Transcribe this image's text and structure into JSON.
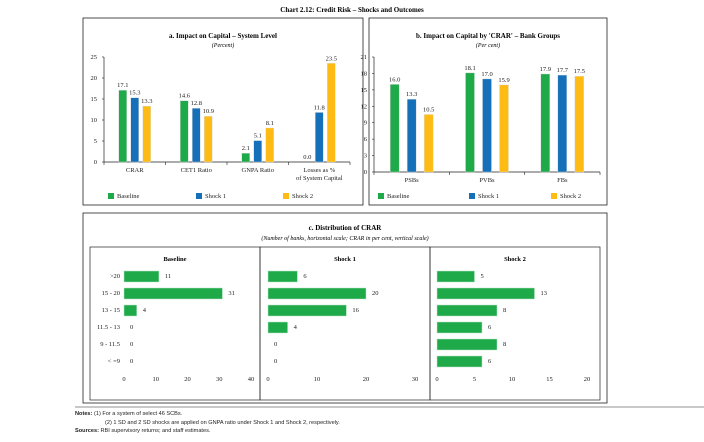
{
  "title": "Chart 2.12: Credit Risk – Shocks and Outcomes",
  "colors": {
    "Baseline": "#1faa4a",
    "Shock 1": "#1570b9",
    "Shock 2": "#fdbb14"
  },
  "chart_data": [
    {
      "type": "bar",
      "title": "a. Impact on Capital – System Level",
      "subtitle": "(Percent)",
      "categories": [
        "CRAR",
        "CET1 Ratio",
        "GNPA Ratio",
        "Losses as % of System Capital"
      ],
      "series": [
        {
          "name": "Baseline",
          "values": [
            17.1,
            14.6,
            2.1,
            0.0
          ]
        },
        {
          "name": "Shock 1",
          "values": [
            15.3,
            12.8,
            5.1,
            11.8
          ]
        },
        {
          "name": "Shock 2",
          "values": [
            13.3,
            10.9,
            8.1,
            23.5
          ]
        }
      ],
      "ylim": [
        0,
        25
      ],
      "yticks": [
        0,
        5,
        10,
        15,
        20,
        25
      ],
      "legend": "bottom"
    },
    {
      "type": "bar",
      "title": "b. Impact on Capital by 'CRAR' – Bank Groups",
      "subtitle": "(Per cent)",
      "categories": [
        "PSBs",
        "PVBs",
        "FBs"
      ],
      "series": [
        {
          "name": "Baseline",
          "values": [
            16.0,
            18.1,
            17.9
          ]
        },
        {
          "name": "Shock 1",
          "values": [
            13.3,
            17.0,
            17.7
          ]
        },
        {
          "name": "Shock 2",
          "values": [
            10.5,
            15.9,
            17.5
          ]
        }
      ],
      "ylim": [
        0,
        21
      ],
      "yticks": [
        0,
        3,
        6,
        9,
        12,
        15,
        18,
        21
      ],
      "legend": "bottom"
    },
    {
      "type": "bar",
      "orientation": "horizontal",
      "title": "c. Distribution of CRAR",
      "subtitle": "(Number of banks, horizontal scale; CRAR in per cent, vertical scale)",
      "categories": [
        ">20",
        "15 - 20",
        "13 - 15",
        "11.5 - 13",
        "9 - 11.5",
        "< =9"
      ],
      "panels": [
        {
          "name": "Baseline",
          "values": [
            11,
            31,
            4,
            0,
            0,
            0
          ],
          "xlim": [
            0,
            40
          ],
          "xticks": [
            0,
            10,
            20,
            30,
            40
          ]
        },
        {
          "name": "Shock 1",
          "values": [
            6,
            20,
            16,
            4,
            0,
            0
          ],
          "xlim": [
            0,
            30
          ],
          "xticks": [
            0,
            10,
            20,
            30
          ]
        },
        {
          "name": "Shock 2",
          "values": [
            5,
            13,
            8,
            6,
            8,
            6
          ],
          "xlim": [
            0,
            20
          ],
          "xticks": [
            0,
            5,
            10,
            15,
            20
          ]
        }
      ],
      "bar_color": "#1faa4a"
    }
  ],
  "notes": {
    "label": "Notes:",
    "n1": "(1) For a system of select 46 SCBs.",
    "n2": "(2) 1 SD and 2 SD shocks are applied on GNPA ratio under Shock 1 and Shock 2, respectively.",
    "sources_label": "Sources:",
    "sources": "RBI supervisory returns; and staff estimates."
  }
}
